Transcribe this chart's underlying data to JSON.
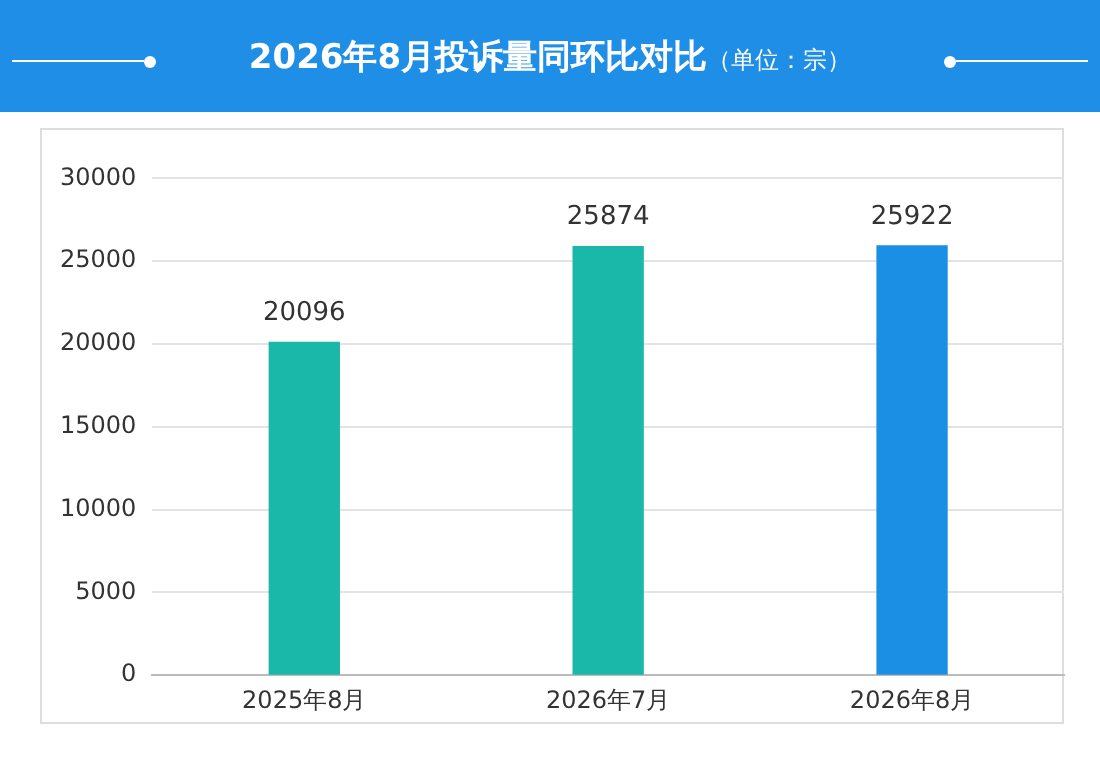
{
  "chart_data": {
    "type": "bar",
    "title": "2026年8月投诉量同环比对比",
    "subtitle": "（单位：宗）",
    "categories": [
      "2025年8月",
      "2026年7月",
      "2026年8月"
    ],
    "values": [
      20096,
      25874,
      25922
    ],
    "colors": [
      "#19b8a8",
      "#19b8a8",
      "#1a8fe3"
    ],
    "ylim": [
      0,
      30000
    ],
    "yticks": [
      0,
      5000,
      10000,
      15000,
      20000,
      25000,
      30000
    ],
    "grid": "y",
    "data_labels": true,
    "legend": false
  }
}
